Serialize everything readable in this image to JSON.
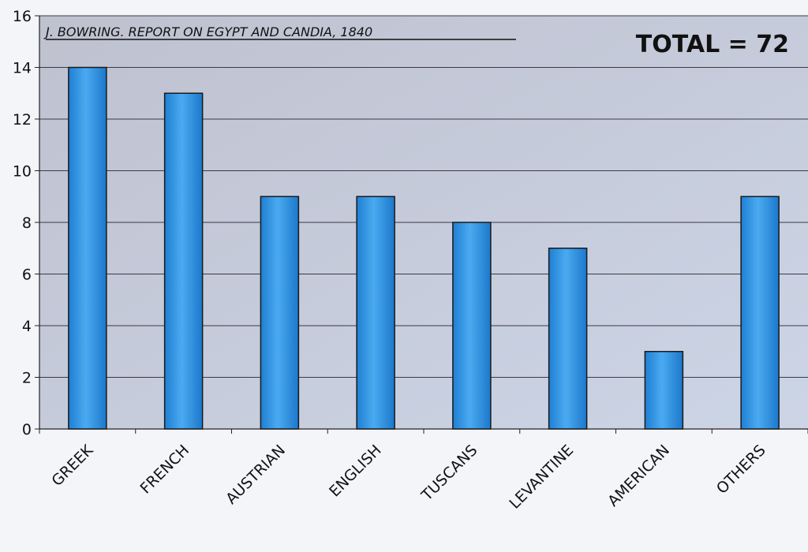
{
  "chart_data": {
    "type": "bar",
    "title": "J. BOWRING. REPORT ON EGYPT AND CANDIA, 1840",
    "annotation": "TOTAL = 72",
    "categories": [
      "GREEK",
      "FRENCH",
      "AUSTRIAN",
      "ENGLISH",
      "TUSCANS",
      "LEVANTINE",
      "AMERICAN",
      "OTHERS"
    ],
    "values": [
      14,
      13,
      9,
      9,
      8,
      7,
      3,
      9
    ],
    "ylim": [
      0,
      16
    ],
    "yticks": [
      "0",
      "2",
      "4",
      "6",
      "8",
      "10",
      "12",
      "14",
      "16"
    ],
    "grid": true,
    "legend": "none",
    "colors": {
      "bar": "#2b8fe0",
      "bar_light": "#52aef0",
      "bar_stroke": "#1a1a1a",
      "plot_bg": "#c3c6d4",
      "gridline": "#3a3a44",
      "page_bg": "#f4f5f9"
    }
  }
}
